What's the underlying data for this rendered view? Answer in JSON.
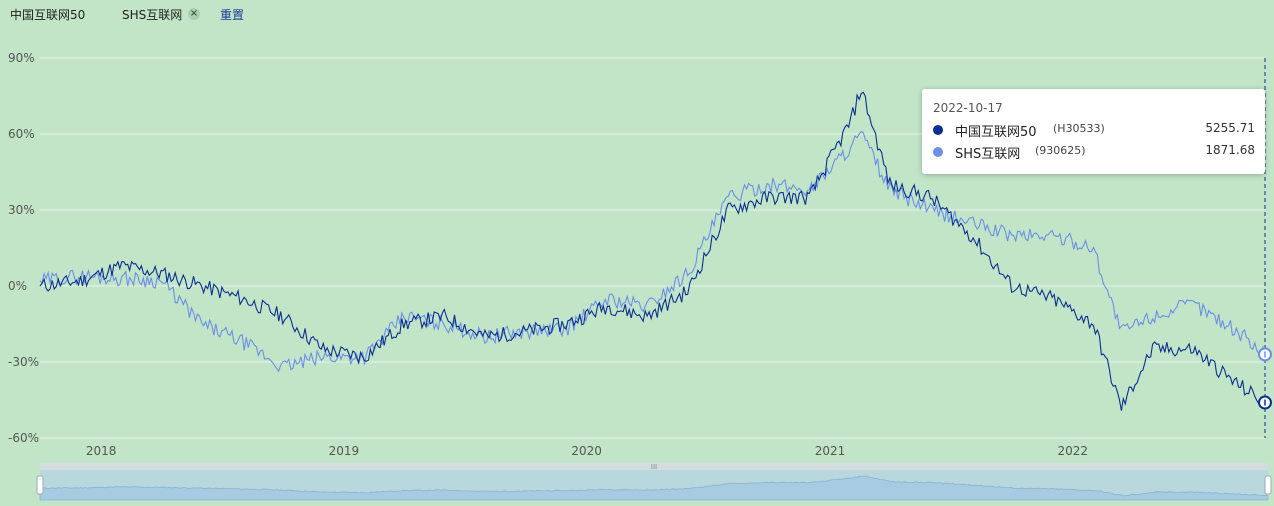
{
  "legend": {
    "items": [
      {
        "label": "中国互联网50",
        "color": "#0b2f8f"
      },
      {
        "label": "SHS互联网",
        "close": "×",
        "color": "#6b8fe6"
      }
    ],
    "reset_label": "重置"
  },
  "tooltip": {
    "date": "2022-10-17",
    "rows": [
      {
        "name": "中国互联网50",
        "code": "(H30533)",
        "value": "5255.71",
        "color": "#0b2f8f"
      },
      {
        "name": "SHS互联网",
        "code": "(930625)",
        "value": "1871.68",
        "color": "#6b8fe6"
      }
    ]
  },
  "colors": {
    "background": "#c2e5c8",
    "grid": "#e6f3e8",
    "series1": "#0b2f8f",
    "series2": "#6b8fe6",
    "slider_fill": "#b8d8de"
  },
  "chart_data": {
    "type": "line",
    "y_unit": "%",
    "ylim": [
      -60,
      90
    ],
    "yticks": [
      "90%",
      "60%",
      "30%",
      "0%",
      "-30%",
      "-60%"
    ],
    "xticks": [
      "2018",
      "2019",
      "2020",
      "2021",
      "2022"
    ],
    "xlim": [
      "2017-10-01",
      "2022-10-17"
    ],
    "grid": true,
    "legend": "top-left",
    "series": [
      {
        "name": "中国互联网50",
        "x": [
          "2017-10-01",
          "2017-12-01",
          "2018-02-01",
          "2018-04-01",
          "2018-06-01",
          "2018-08-01",
          "2018-10-01",
          "2018-12-01",
          "2019-02-01",
          "2019-04-01",
          "2019-06-01",
          "2019-08-01",
          "2019-10-01",
          "2019-12-01",
          "2020-02-01",
          "2020-04-01",
          "2020-06-01",
          "2020-08-01",
          "2020-10-01",
          "2020-12-01",
          "2021-02-01",
          "2021-02-17",
          "2021-04-01",
          "2021-06-01",
          "2021-08-01",
          "2021-10-01",
          "2021-12-01",
          "2022-02-01",
          "2022-03-15",
          "2022-05-01",
          "2022-07-01",
          "2022-09-01",
          "2022-10-17"
        ],
        "y": [
          0,
          2,
          8,
          5,
          0,
          -5,
          -12,
          -25,
          -28,
          -15,
          -12,
          -20,
          -18,
          -15,
          -8,
          -12,
          -2,
          30,
          35,
          35,
          65,
          78,
          40,
          35,
          20,
          0,
          -5,
          -15,
          -48,
          -25,
          -25,
          -38,
          -46
        ]
      },
      {
        "name": "SHS互联网",
        "x": [
          "2017-10-01",
          "2017-12-01",
          "2018-02-01",
          "2018-04-01",
          "2018-06-01",
          "2018-08-01",
          "2018-10-01",
          "2018-12-01",
          "2019-02-01",
          "2019-04-01",
          "2019-06-01",
          "2019-08-01",
          "2019-10-01",
          "2019-12-01",
          "2020-02-01",
          "2020-04-01",
          "2020-06-01",
          "2020-08-01",
          "2020-10-01",
          "2020-12-01",
          "2021-02-01",
          "2021-02-17",
          "2021-04-01",
          "2021-06-01",
          "2021-08-01",
          "2021-10-01",
          "2021-12-01",
          "2022-02-01",
          "2022-03-15",
          "2022-05-01",
          "2022-07-01",
          "2022-09-01",
          "2022-10-17"
        ],
        "y": [
          2,
          4,
          3,
          2,
          -15,
          -22,
          -32,
          -28,
          -28,
          -12,
          -15,
          -20,
          -18,
          -17,
          -5,
          -8,
          5,
          35,
          40,
          38,
          55,
          60,
          38,
          30,
          25,
          20,
          20,
          15,
          -18,
          -12,
          -7,
          -17,
          -27
        ]
      }
    ]
  }
}
